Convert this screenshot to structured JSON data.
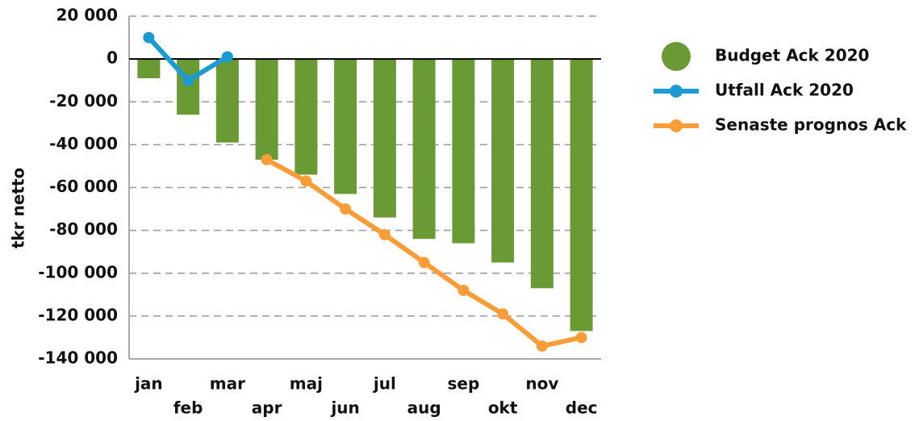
{
  "chart_data": {
    "type": "bar",
    "ylabel": "tkr netto",
    "categories": [
      "jan",
      "feb",
      "mar",
      "apr",
      "maj",
      "jun",
      "jul",
      "aug",
      "sep",
      "okt",
      "nov",
      "dec"
    ],
    "series": [
      {
        "name": "Budget Ack 2020",
        "type": "bar",
        "color": "#6a9a34",
        "values": [
          -9000,
          -26000,
          -39000,
          -47000,
          -54000,
          -63000,
          -74000,
          -84000,
          -86000,
          -95000,
          -107000,
          -127000
        ]
      },
      {
        "name": "Utfall Ack 2020",
        "type": "line",
        "color": "#1b9bd1",
        "values": [
          10000,
          -10000,
          1000,
          null,
          null,
          null,
          null,
          null,
          null,
          null,
          null,
          null
        ]
      },
      {
        "name": "Senaste prognos Ack",
        "type": "line",
        "color": "#f99d38",
        "values": [
          null,
          null,
          null,
          -47000,
          -57000,
          -70000,
          -82000,
          -95000,
          -108000,
          -119000,
          -134000,
          -130000
        ]
      }
    ],
    "ylim": [
      -140000,
      20000
    ],
    "yticks": [
      {
        "value": -140000,
        "label": "-140 000"
      },
      {
        "value": -120000,
        "label": "-120 000"
      },
      {
        "value": -100000,
        "label": "-100 000"
      },
      {
        "value": -80000,
        "label": "-80 000"
      },
      {
        "value": -60000,
        "label": "-60 000"
      },
      {
        "value": -40000,
        "label": "-40 000"
      },
      {
        "value": -20000,
        "label": "-20 000"
      },
      0,
      {
        "value": 20000,
        "label": "20 000"
      }
    ],
    "grid": true,
    "legend": "right"
  }
}
